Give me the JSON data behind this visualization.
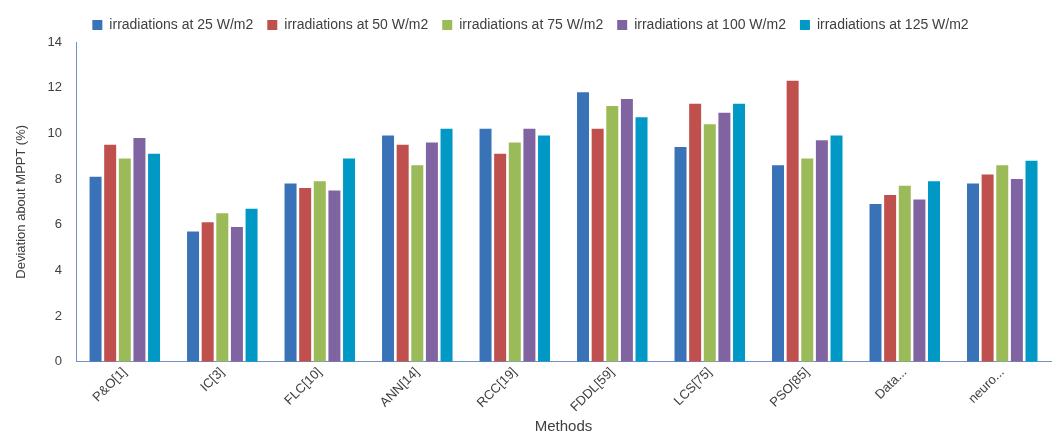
{
  "chart_data": {
    "type": "bar",
    "xlabel": "Methods",
    "ylabel": "Deviation about MPPT (%)",
    "categories": [
      "P&O[1]",
      "IC[3]",
      "FLC[10]",
      "ANN[14]",
      "RCC[19]",
      "FDDL[59]",
      "LCS[75]",
      "PSO[85]",
      "Data...",
      "neuro..."
    ],
    "series": [
      {
        "name": "irradiations at 25 W/m2",
        "color": "#3a72b8",
        "values": [
          8.1,
          5.7,
          7.8,
          9.9,
          10.2,
          11.8,
          9.4,
          8.6,
          6.9,
          7.8
        ]
      },
      {
        "name": "irradiations at 50 W/m2",
        "color": "#c0504d",
        "values": [
          9.5,
          6.1,
          7.6,
          9.5,
          9.1,
          10.2,
          11.3,
          12.3,
          7.3,
          8.2
        ]
      },
      {
        "name": "irradiations at 75 W/m2",
        "color": "#9bbb59",
        "values": [
          8.9,
          6.5,
          7.9,
          8.6,
          9.6,
          11.2,
          10.4,
          8.9,
          7.7,
          8.6
        ]
      },
      {
        "name": "irradiations at 100 W/m2",
        "color": "#8064a2",
        "values": [
          9.8,
          5.9,
          7.5,
          9.6,
          10.2,
          11.5,
          10.9,
          9.7,
          7.1,
          8.0
        ]
      },
      {
        "name": "irradiations at 125 W/m2",
        "color": "#0099c6",
        "values": [
          9.1,
          6.7,
          8.9,
          10.2,
          9.9,
          10.7,
          11.3,
          9.9,
          7.9,
          8.8
        ]
      }
    ],
    "ylim": [
      0,
      14
    ],
    "yticks": [
      0,
      2,
      4,
      6,
      8,
      10,
      12,
      14
    ],
    "grid": false,
    "legend": "top"
  }
}
